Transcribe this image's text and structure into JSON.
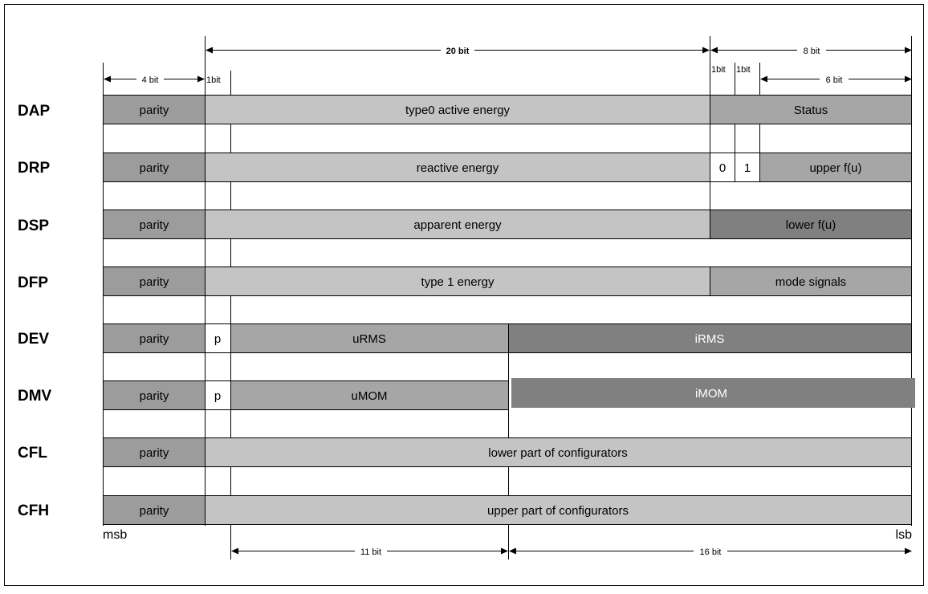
{
  "colors": {
    "background": "#ffffff",
    "parity_fill": "#9c9c9c",
    "light_fill": "#c4c4c4",
    "dark_fill": "#808080",
    "mid_fill": "#a6a6a6",
    "line": "#000000"
  },
  "registers": [
    {
      "name": "DAP",
      "fields": [
        {
          "label": "parity",
          "tone": "parity"
        },
        {
          "label": "type0 active energy",
          "tone": "light"
        },
        {
          "label": "Status",
          "tone": "mid"
        }
      ]
    },
    {
      "name": "DRP",
      "fields": [
        {
          "label": "parity",
          "tone": "parity"
        },
        {
          "label": "reactive energy",
          "tone": "light"
        },
        {
          "label": "0",
          "tone": "white"
        },
        {
          "label": "1",
          "tone": "white"
        },
        {
          "label": "upper f(u)",
          "tone": "mid"
        }
      ]
    },
    {
      "name": "DSP",
      "fields": [
        {
          "label": "parity",
          "tone": "parity"
        },
        {
          "label": "apparent energy",
          "tone": "light"
        },
        {
          "label": "lower f(u)",
          "tone": "dark"
        }
      ]
    },
    {
      "name": "DFP",
      "fields": [
        {
          "label": "parity",
          "tone": "parity"
        },
        {
          "label": "type 1 energy",
          "tone": "light"
        },
        {
          "label": "mode signals",
          "tone": "mid"
        }
      ]
    },
    {
      "name": "DEV",
      "fields": [
        {
          "label": "parity",
          "tone": "parity"
        },
        {
          "label": "p",
          "tone": "white"
        },
        {
          "label": "uRMS",
          "tone": "mid"
        },
        {
          "label": "iRMS",
          "tone": "dark"
        }
      ]
    },
    {
      "name": "DMV",
      "fields": [
        {
          "label": "parity",
          "tone": "parity"
        },
        {
          "label": "p",
          "tone": "white"
        },
        {
          "label": "uMOM",
          "tone": "mid"
        },
        {
          "label": "iMOM",
          "tone": "dark"
        }
      ]
    },
    {
      "name": "CFL",
      "fields": [
        {
          "label": "parity",
          "tone": "parity"
        },
        {
          "label": "lower part of configurators",
          "tone": "light"
        }
      ]
    },
    {
      "name": "CFH",
      "fields": [
        {
          "label": "parity",
          "tone": "parity"
        },
        {
          "label": "upper part of configurators",
          "tone": "light"
        }
      ]
    }
  ],
  "dimensions": {
    "top_20": "20 bit",
    "top_8": "8 bit",
    "top_4": "4 bit",
    "top_1": "1bit",
    "status_1a": "1bit",
    "status_1b": "1bit",
    "status_6": "6 bit",
    "bottom_11": "11 bit",
    "bottom_16": "16 bit"
  },
  "edges": {
    "msb": "msb",
    "lsb": "lsb"
  }
}
